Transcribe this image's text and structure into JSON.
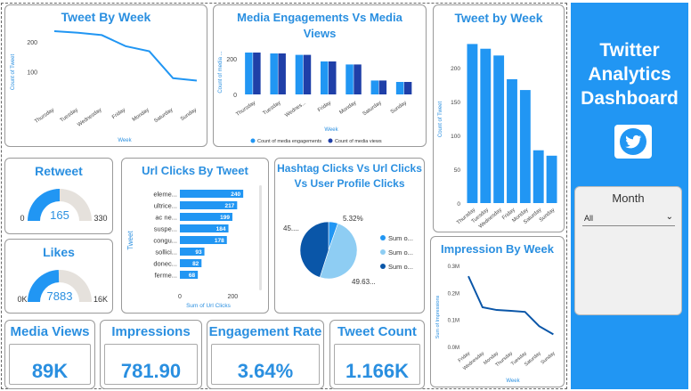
{
  "colors": {
    "accent": "#2196f3",
    "dark_series": "#1f3fa8",
    "gauge_track": "#e5e1dc"
  },
  "sidebar": {
    "title_lines": [
      "Twitter",
      "Analytics",
      "Dashboard"
    ],
    "logo_icon": "twitter-bird-icon",
    "slicer": {
      "label": "Month",
      "selected": "All",
      "chevron_icon": "chevron-down-icon"
    }
  },
  "tweet_by_week_line": {
    "title": "Tweet By Week",
    "chart_data": {
      "type": "line",
      "title": "Tweet By Week",
      "xlabel": "Week",
      "ylabel": "Count of Tweet",
      "categories": [
        "Thursday",
        "Tuesday",
        "Wednesday",
        "Friday",
        "Monday",
        "Saturday",
        "Sunday"
      ],
      "values": [
        235,
        230,
        222,
        185,
        168,
        78,
        70
      ],
      "ylim": [
        0,
        250
      ],
      "yticks": [
        "100",
        "200"
      ]
    }
  },
  "media_engagements": {
    "title": "Media Engagements Vs Media Views",
    "chart_data": {
      "type": "bar",
      "title": "Media Engagements Vs Media Views",
      "xlabel": "Week",
      "ylabel": "Count of media ...",
      "categories": [
        "Thursday",
        "Tuesday",
        "Wednes...",
        "Friday",
        "Monday",
        "Saturday",
        "Sunday"
      ],
      "series": [
        {
          "name": "Count of media engagements",
          "values": [
            235,
            230,
            222,
            185,
            168,
            78,
            70
          ]
        },
        {
          "name": "Count of media views",
          "values": [
            235,
            230,
            222,
            185,
            168,
            78,
            70
          ]
        }
      ],
      "ylim": [
        0,
        300
      ],
      "yticks": [
        "0",
        "200"
      ],
      "legend": "bottom"
    }
  },
  "tweet_by_week_bar": {
    "title": "Tweet by Week",
    "chart_data": {
      "type": "bar",
      "title": "Tweet by Week",
      "xlabel": "Week",
      "ylabel": "Count of Tweet",
      "categories": [
        "Thursday",
        "Tuesday",
        "Wednesday",
        "Friday",
        "Monday",
        "Saturday",
        "Sunday"
      ],
      "values": [
        235,
        228,
        218,
        183,
        167,
        78,
        70
      ],
      "ylim": [
        0,
        250
      ],
      "yticks": [
        "0",
        "50",
        "100",
        "150",
        "200"
      ]
    }
  },
  "retweet": {
    "title": "Retweet",
    "value": "165",
    "min": "0",
    "max": "330",
    "fraction": 0.5
  },
  "likes": {
    "title": "Likes",
    "value": "7883",
    "min": "0K",
    "max": "16K",
    "fraction": 0.49
  },
  "url_clicks": {
    "title": "Url Clicks By Tweet",
    "chart_data": {
      "type": "bar",
      "orientation": "horizontal",
      "title": "Url Clicks By Tweet",
      "xlabel": "Sum of Url Clicks",
      "ylabel": "Tweet",
      "categories": [
        "eleme...",
        "ultrice...",
        "ac ne...",
        "suspe...",
        "congu...",
        "sollici...",
        "donec...",
        "ferme..."
      ],
      "values": [
        240,
        217,
        199,
        184,
        178,
        93,
        82,
        68
      ],
      "labels": [
        "240",
        "217",
        "199",
        "184",
        "178",
        "93",
        "82",
        "68"
      ],
      "xlim": [
        0,
        280
      ],
      "xticks": [
        "0",
        "200"
      ]
    }
  },
  "hashtag_pie": {
    "title_lines": [
      "Hashtag Clicks Vs Url Clicks",
      "Vs User Profile Clicks"
    ],
    "chart_data": {
      "type": "pie",
      "title": "Hashtag Clicks Vs Url Clicks Vs User Profile Clicks",
      "slices": [
        {
          "name": "Sum o...",
          "percent": 5.32,
          "label": "5.32%"
        },
        {
          "name": "Sum o...",
          "percent": 49.63,
          "label": "49.63..."
        },
        {
          "name": "Sum o...",
          "percent": 45.05,
          "label": "45...."
        }
      ],
      "legend": "right"
    }
  },
  "impression_by_week": {
    "title": "Impression By Week",
    "chart_data": {
      "type": "line",
      "title": "Impression By Week",
      "xlabel": "Week",
      "ylabel": "Sum of Impressions",
      "categories": [
        "Friday",
        "Wednesday",
        "Monday",
        "Thursday",
        "Tuesday",
        "Saturday",
        "Sunday"
      ],
      "values": [
        0.26,
        0.145,
        0.135,
        0.132,
        0.128,
        0.075,
        0.045
      ],
      "ylim": [
        0,
        0.3
      ],
      "yticks": [
        "0.0M",
        "0.1M",
        "0.2M",
        "0.3M"
      ]
    }
  },
  "kpis": [
    {
      "label": "Media Views",
      "value": "89K"
    },
    {
      "label": "Impressions",
      "value": "781.90"
    },
    {
      "label": "Engagement Rate",
      "value": "3.64%"
    },
    {
      "label": "Tweet Count",
      "value": "1.166K"
    }
  ]
}
